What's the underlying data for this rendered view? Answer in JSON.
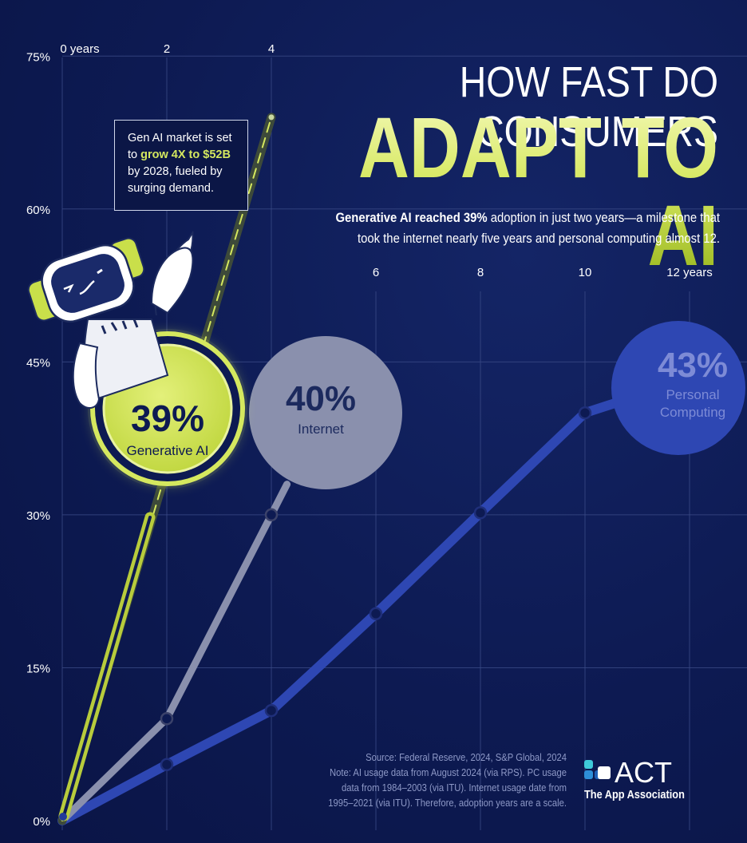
{
  "title_line1": "HOW FAST DO CONSUMERS",
  "title_line2": "ADAPT TO AI",
  "subtitle": {
    "bold": "Generative AI reached 39%",
    "rest_line1": " adoption in just two years—a milestone that",
    "line2": "took the internet nearly five years and personal computing almost 12."
  },
  "callout": {
    "before": "Gen AI market is set to ",
    "highlight": "grow 4X to $52B",
    "after": " by 2028, fueled by surging demand."
  },
  "source": {
    "line1": "Source: Federal Reserve, 2024, S&P Global, 2024",
    "line2": "Note: AI usage data from August 2024 (via RPS). PC usage",
    "line3": "data from 1984–2003 (via ITU). Internet usage date from",
    "line4": "1995–2021 (via ITU). Therefore, adoption years are a scale."
  },
  "logo": {
    "name": "ACT",
    "tagline": "The App Association",
    "colors": [
      "#3ec9d8",
      "#2e8fd9",
      "#1e5fb8",
      "#ffffff"
    ]
  },
  "colors": {
    "background": "#0d1a52",
    "generative_ai": "#d5e85f",
    "internet": "#8a90ad",
    "personal_computing": "#2e47b3",
    "grid": "#3a4a86"
  },
  "chart_data": {
    "type": "line",
    "x_unit": "years",
    "x_range": [
      0,
      13
    ],
    "y_range": [
      0,
      75
    ],
    "x_ticks_top": [
      {
        "value": 0,
        "label": "0 years"
      },
      {
        "value": 2,
        "label": "2"
      },
      {
        "value": 4,
        "label": "4"
      }
    ],
    "x_ticks_mid": [
      {
        "value": 6,
        "label": "6"
      },
      {
        "value": 8,
        "label": "8"
      },
      {
        "value": 10,
        "label": "10"
      },
      {
        "value": 12,
        "label": "12 years"
      }
    ],
    "y_ticks": [
      {
        "value": 0,
        "label": "0%"
      },
      {
        "value": 15,
        "label": "15%"
      },
      {
        "value": 30,
        "label": "30%"
      },
      {
        "value": 45,
        "label": "45%"
      },
      {
        "value": 60,
        "label": "60%"
      },
      {
        "value": 75,
        "label": "75%"
      }
    ],
    "grid": true,
    "series": [
      {
        "key": "pc",
        "name": "Personal Computing",
        "value_label": "43%",
        "points": [
          [
            0,
            0
          ],
          [
            2,
            5.5
          ],
          [
            4,
            10.8
          ],
          [
            6,
            20.3
          ],
          [
            8,
            30.2
          ],
          [
            10,
            40
          ],
          [
            10.6,
            41
          ]
        ],
        "markers": [
          [
            2,
            5.5
          ],
          [
            4,
            10.8
          ],
          [
            6,
            20.3
          ],
          [
            8,
            30.2
          ],
          [
            10,
            40
          ]
        ]
      },
      {
        "key": "internet",
        "name": "Internet",
        "value_label": "40%",
        "points": [
          [
            0,
            0
          ],
          [
            2,
            10
          ],
          [
            4,
            30
          ],
          [
            4.3,
            33
          ]
        ],
        "markers": [
          [
            2,
            10
          ],
          [
            4,
            30
          ]
        ]
      },
      {
        "key": "genai",
        "name": "Generative AI",
        "value_label": "39%",
        "points": [
          [
            0,
            0
          ],
          [
            4,
            69
          ]
        ],
        "markers": []
      }
    ]
  }
}
